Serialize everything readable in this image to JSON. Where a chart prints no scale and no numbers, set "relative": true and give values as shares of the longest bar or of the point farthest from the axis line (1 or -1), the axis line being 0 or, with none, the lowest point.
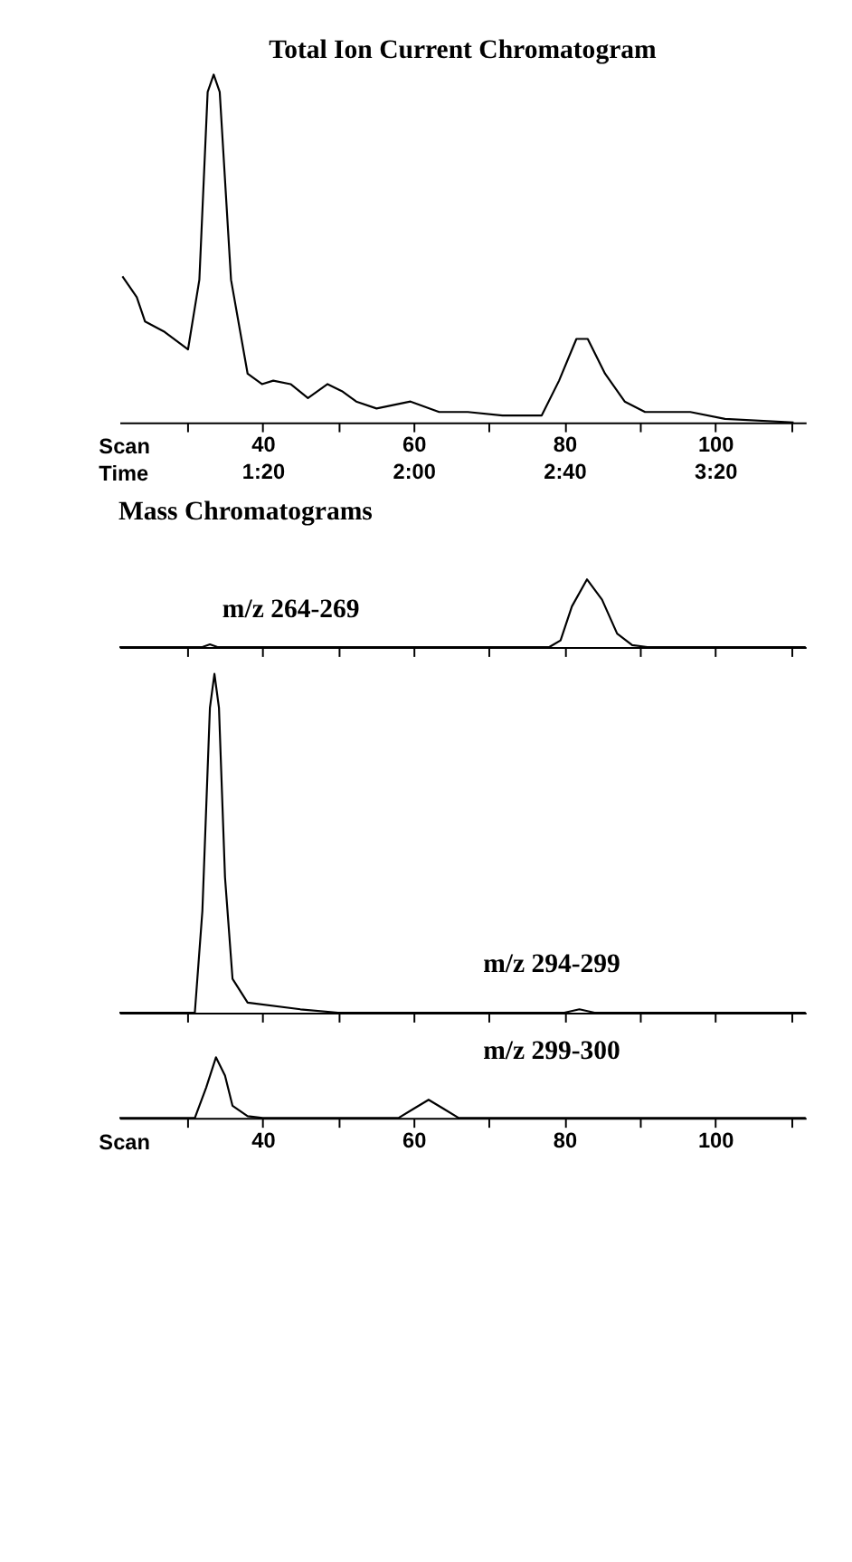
{
  "chart_data": [
    {
      "type": "line",
      "title": "Total Ion Current Chromatogram",
      "relative": true,
      "xlabel": "Scan",
      "x2label": "Time",
      "xlim": [
        21,
        112
      ],
      "xticks": [
        {
          "value": 30,
          "label": null
        },
        40,
        {
          "value": 50,
          "label": null
        },
        60,
        {
          "value": 70,
          "label": null
        },
        80,
        {
          "value": 90,
          "label": null
        },
        100,
        {
          "value": 110,
          "label": null
        }
      ],
      "x2lim": [
        0.7,
        3.7333
      ],
      "x2ticks": [
        {
          "value": 1.3333,
          "label": "1:20"
        },
        {
          "value": 2.0,
          "label": "2:00"
        },
        {
          "value": 2.6667,
          "label": "2:40"
        },
        {
          "value": 3.3333,
          "label": "3:20"
        }
      ],
      "x": [
        21.4,
        23.3,
        24.4,
        27.0,
        30.1,
        31.6,
        32.7,
        33.5,
        34.3,
        35.8,
        38.0,
        39.9,
        41.4,
        43.7,
        46.0,
        48.6,
        50.5,
        52.4,
        55.1,
        59.6,
        63.4,
        67.2,
        71.8,
        77.0,
        79.3,
        81.6,
        83.1,
        85.4,
        88.0,
        90.7,
        96.7,
        101.3,
        110.4
      ],
      "series": [
        {
          "color": "#000000",
          "values": [
            0.42,
            0.36,
            0.29,
            0.26,
            0.21,
            0.41,
            0.95,
            1.0,
            0.95,
            0.41,
            0.14,
            0.11,
            0.12,
            0.11,
            0.07,
            0.11,
            0.09,
            0.06,
            0.04,
            0.06,
            0.03,
            0.03,
            0.02,
            0.02,
            0.12,
            0.24,
            0.24,
            0.14,
            0.06,
            0.03,
            0.03,
            0.01,
            0
          ]
        }
      ]
    },
    {
      "type": "line",
      "title": "Mass Chromatograms",
      "relative": true,
      "tick_labels": false,
      "xlim": [
        21,
        112
      ],
      "xticks": [
        30,
        40,
        50,
        60,
        70,
        80,
        90,
        100,
        110
      ],
      "x": [
        21,
        32,
        33,
        34,
        78,
        79.5,
        81,
        83,
        85,
        87,
        89,
        91,
        112
      ],
      "series": [
        {
          "name": "m/z 264-269",
          "color": "#000000",
          "values": [
            0,
            0,
            0.04,
            0,
            0,
            0.1,
            0.6,
            1.0,
            0.7,
            0.2,
            0.03,
            0,
            0
          ]
        }
      ]
    },
    {
      "type": "line",
      "relative": true,
      "tick_labels": false,
      "xlim": [
        21,
        112
      ],
      "xticks": [
        30,
        40,
        50,
        60,
        70,
        80,
        90,
        100,
        110
      ],
      "x": [
        21,
        31,
        32,
        33,
        33.6,
        34.2,
        35,
        36,
        38,
        45,
        50,
        80,
        82,
        84,
        112
      ],
      "series": [
        {
          "name": "m/z 294-299",
          "color": "#000000",
          "values": [
            0,
            0,
            0.3,
            0.9,
            1.0,
            0.9,
            0.4,
            0.1,
            0.03,
            0.01,
            0,
            0,
            0.01,
            0,
            0
          ]
        }
      ]
    },
    {
      "type": "line",
      "relative": true,
      "xlabel": "Scan",
      "xlim": [
        21,
        112
      ],
      "xticks": [
        {
          "value": 30,
          "label": null
        },
        40,
        {
          "value": 50,
          "label": null
        },
        60,
        {
          "value": 70,
          "label": null
        },
        80,
        {
          "value": 90,
          "label": null
        },
        100,
        {
          "value": 110,
          "label": null
        }
      ],
      "x": [
        21,
        31,
        32.5,
        33.8,
        35,
        36,
        38,
        40,
        58,
        60,
        62,
        64,
        66,
        112
      ],
      "series": [
        {
          "name": "m/z 299-300",
          "color": "#000000",
          "values": [
            0,
            0,
            0.5,
            1.0,
            0.7,
            0.2,
            0.03,
            0,
            0,
            0.15,
            0.3,
            0.15,
            0,
            0
          ]
        }
      ]
    }
  ]
}
